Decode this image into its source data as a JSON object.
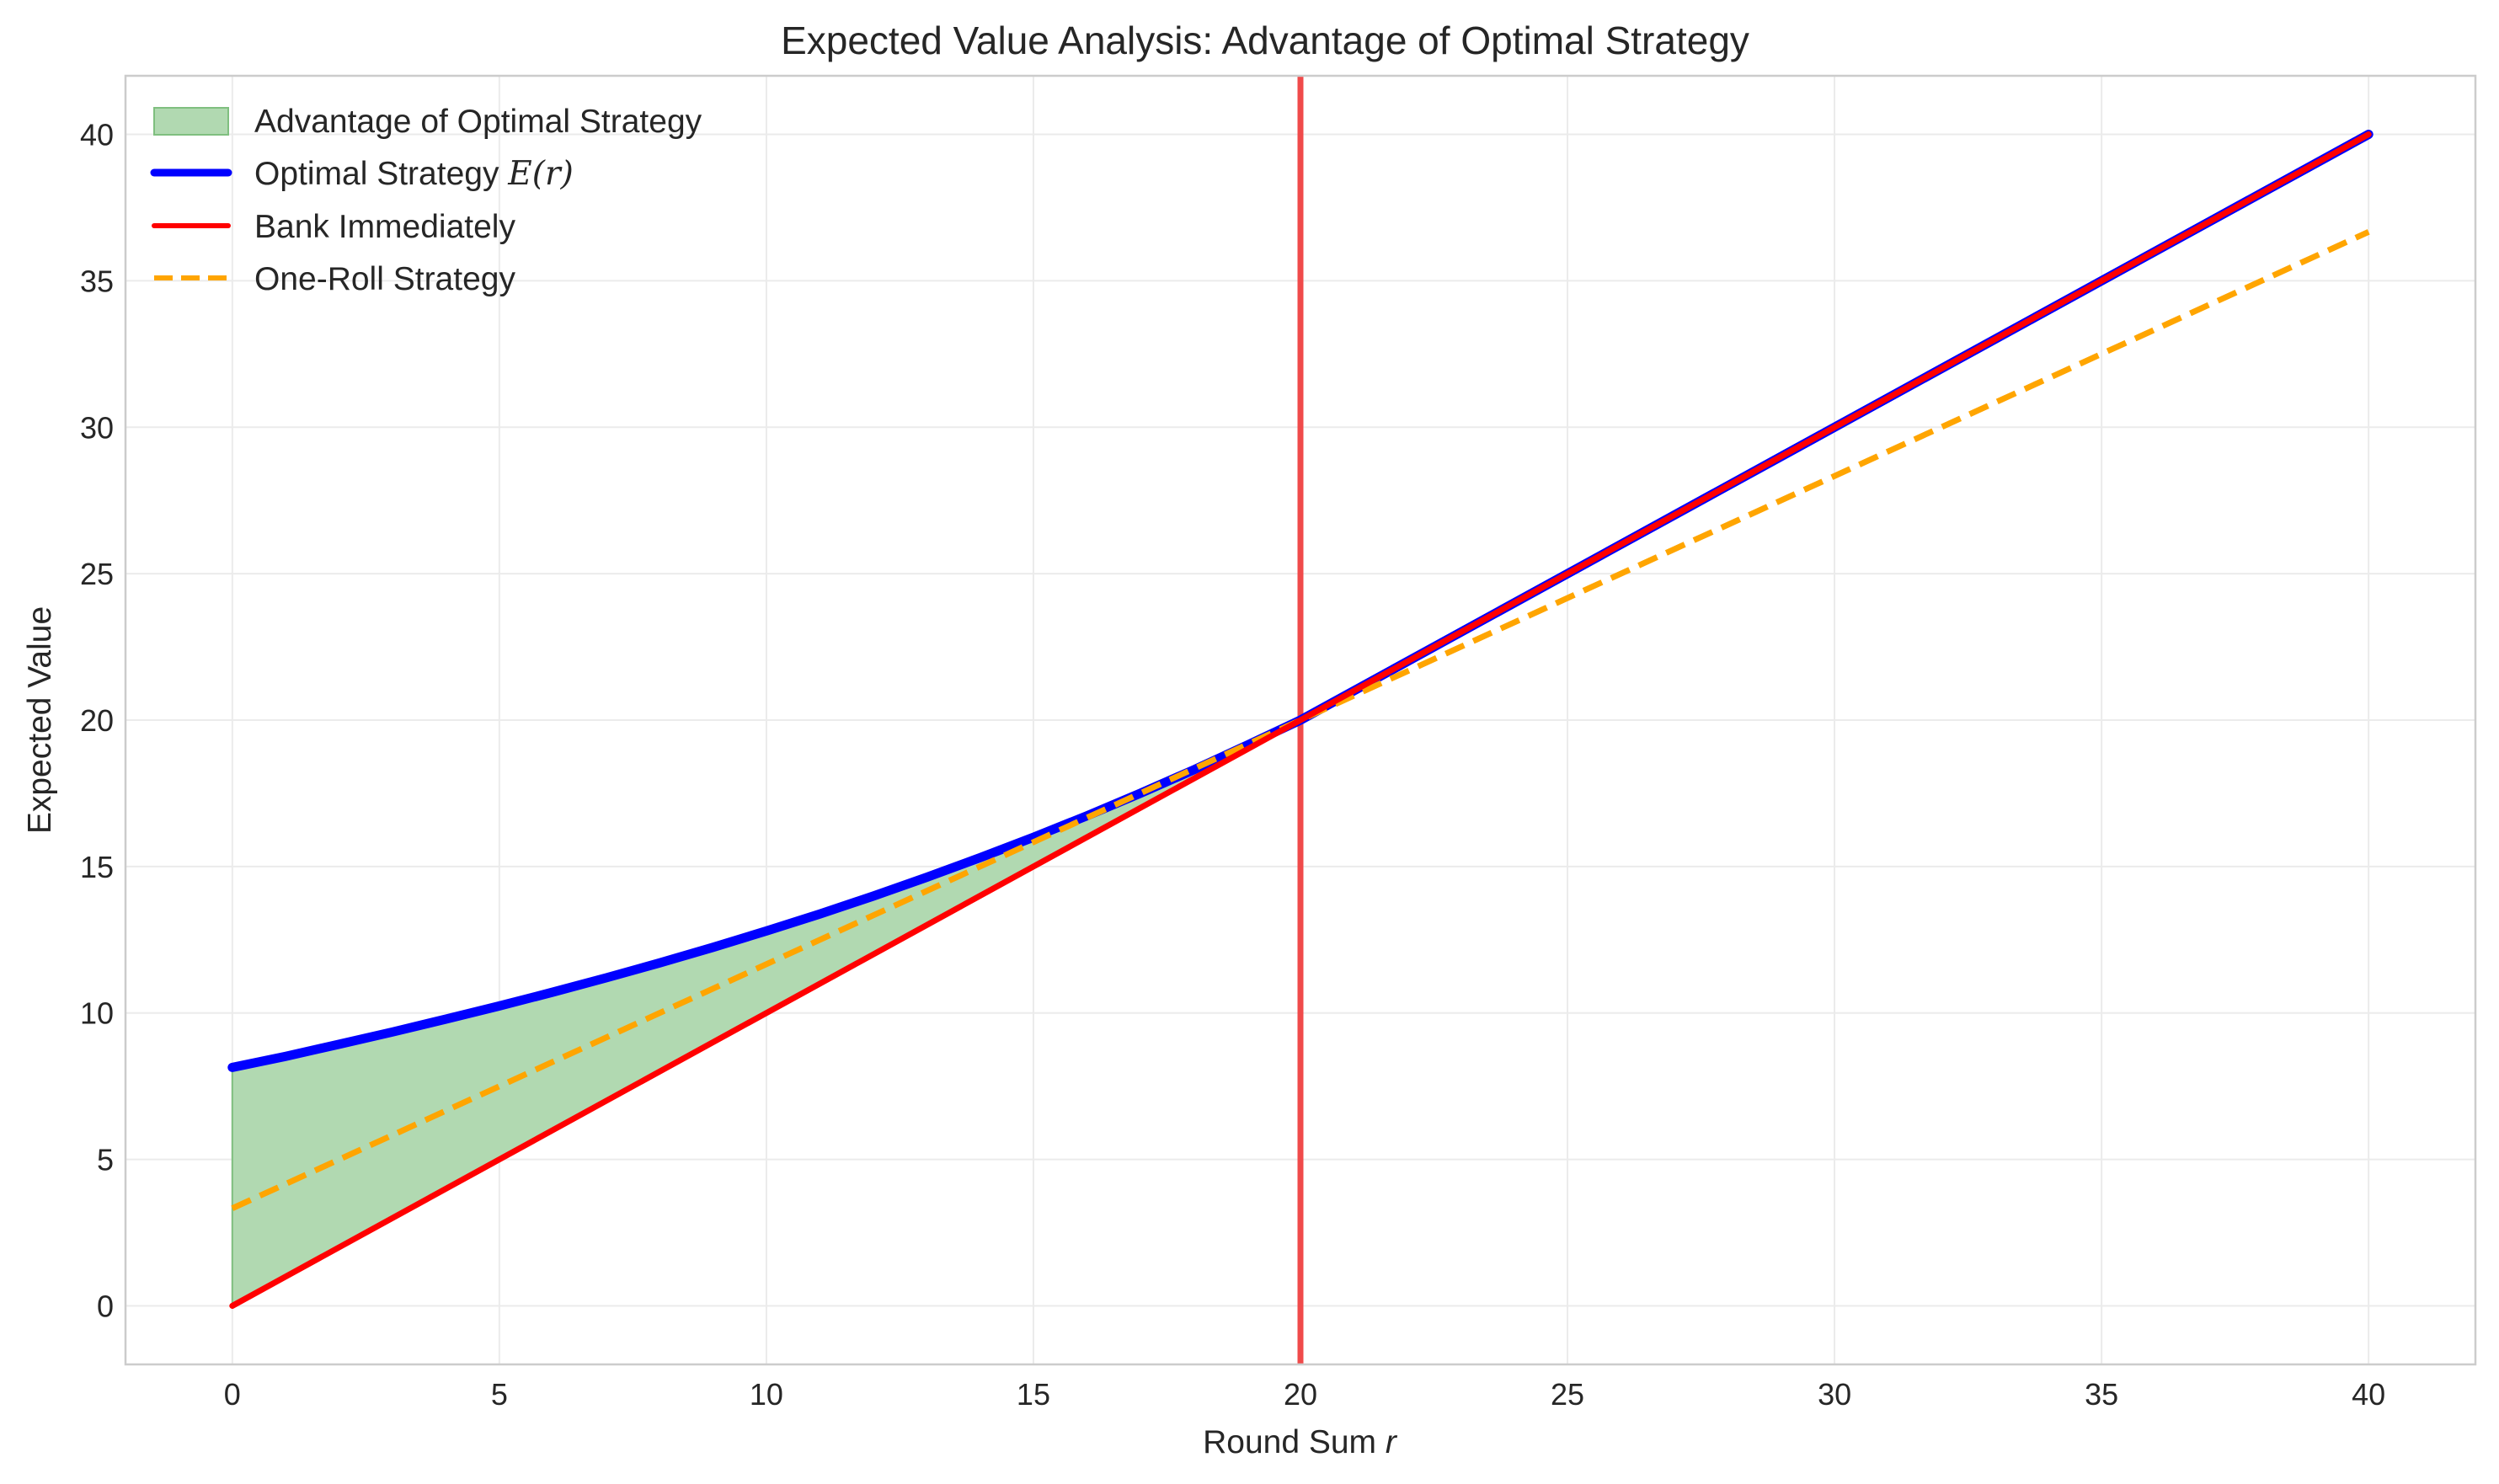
{
  "chart_data": {
    "type": "line",
    "title": "Expected Value Analysis: Advantage of Optimal Strategy",
    "xlabel": "Round Sum r",
    "ylabel": "Expected Value",
    "xlim": [
      -2,
      42
    ],
    "ylim": [
      -2,
      42
    ],
    "xticks": [
      0,
      5,
      10,
      15,
      20,
      25,
      30,
      35,
      40
    ],
    "yticks": [
      0,
      5,
      10,
      15,
      20,
      25,
      30,
      35,
      40
    ],
    "grid": true,
    "legend_position": "top-left",
    "threshold_line": {
      "x": 20,
      "color": "#f04a4a"
    },
    "series": [
      {
        "name": "Optimal Strategy E(r)",
        "legend_label": "Optimal Strategy ",
        "legend_math": "E(r)",
        "color": "#0000ff",
        "style": "solid",
        "x": [
          0,
          1,
          2,
          3,
          4,
          5,
          6,
          7,
          8,
          9,
          10,
          11,
          12,
          13,
          14,
          15,
          16,
          17,
          18,
          19,
          20,
          40
        ],
        "values": [
          8.14,
          8.52,
          8.93,
          9.35,
          9.79,
          10.24,
          10.71,
          11.2,
          11.71,
          12.24,
          12.8,
          13.38,
          13.99,
          14.63,
          15.3,
          16.0,
          16.73,
          17.5,
          18.3,
          19.14,
          20.0,
          40.0
        ]
      },
      {
        "name": "Bank Immediately",
        "legend_label": "Bank Immediately",
        "color": "#ff0000",
        "style": "solid",
        "x": [
          0,
          40
        ],
        "values": [
          0,
          40
        ]
      },
      {
        "name": "One-Roll Strategy",
        "legend_label": "One-Roll Strategy",
        "color": "#ffa500",
        "style": "dashed",
        "x": [
          0,
          40
        ],
        "values": [
          3.33,
          36.67
        ]
      }
    ],
    "fill": {
      "name": "Advantage of Optimal Strategy",
      "legend_label": "Advantage of Optimal Strategy",
      "color": "#b1d9b1",
      "edge_color": "#7fbf7f",
      "between": [
        "Optimal Strategy E(r)",
        "Bank Immediately"
      ]
    }
  }
}
